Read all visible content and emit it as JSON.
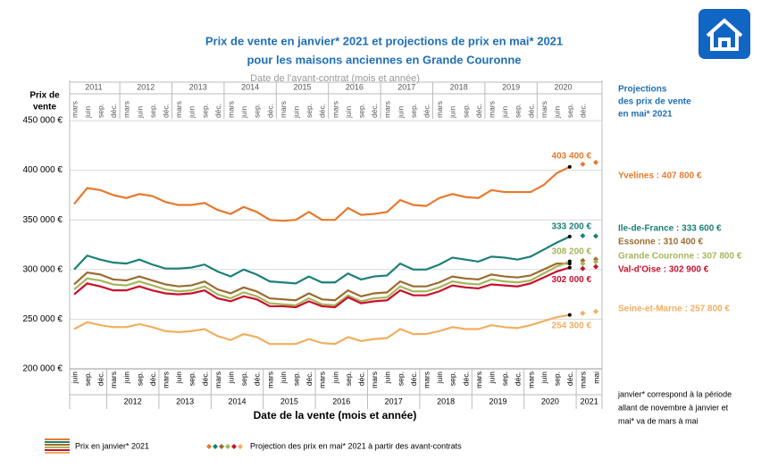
{
  "chart_data": {
    "type": "line",
    "title": [
      "Prix de vente en janvier* 2021 et projections de prix en mai* 2021",
      "pour les maisons anciennes en Grande Couronne"
    ],
    "x_label_top": "Date de l'avant-contrat (mois et année)",
    "x_label": "Date de la vente (mois et année)",
    "y_label": [
      "Prix de",
      "vente"
    ],
    "projection_header": [
      "Projections",
      "des prix de vente",
      "en mai* 2021"
    ],
    "footnote": [
      "janvier* correspond à la période",
      "allant de novembre à janvier et",
      "mai* va de mars à mai"
    ],
    "legend": [
      "Prix en janvier* 2021",
      "Projection des prix en mai* 2021 à partir des avant-contrats"
    ],
    "top_categories": [
      "mars",
      "juin",
      "sep.",
      "déc.",
      "mars",
      "juin",
      "sep.",
      "déc.",
      "mars",
      "juin",
      "sep.",
      "déc.",
      "mars",
      "juin",
      "sep.",
      "déc.",
      "mars",
      "juin",
      "sep.",
      "déc.",
      "mars",
      "juin",
      "sep.",
      "déc.",
      "mars",
      "juin",
      "sep.",
      "déc.",
      "mars",
      "juin",
      "sep.",
      "déc.",
      "mars",
      "juin",
      "sep.",
      "déc.",
      "mars",
      "juin",
      "sep.",
      "déc."
    ],
    "top_years": [
      2011,
      2012,
      2013,
      2014,
      2015,
      2016,
      2017,
      2018,
      2019,
      2020
    ],
    "categories": [
      "juin",
      "sep.",
      "déc.",
      "mars",
      "juin",
      "sep.",
      "déc.",
      "mars",
      "juin",
      "sep.",
      "déc.",
      "mars",
      "juin",
      "sep.",
      "déc.",
      "mars",
      "juin",
      "sep.",
      "déc.",
      "mars",
      "juin",
      "sep.",
      "déc.",
      "mars",
      "juin",
      "sep.",
      "déc.",
      "mars",
      "juin",
      "sep.",
      "déc.",
      "mars",
      "juin",
      "sep.",
      "déc.",
      "mars",
      "juin",
      "sep.",
      "déc.",
      "mars",
      "mai"
    ],
    "years": [
      2012,
      2013,
      2014,
      2015,
      2016,
      2017,
      2018,
      2019,
      2020,
      2021
    ],
    "ylim": [
      200000,
      450000
    ],
    "yticks": [
      {
        "value": 200000,
        "label": "200 000 €"
      },
      {
        "value": 250000,
        "label": "250 000 €"
      },
      {
        "value": 300000,
        "label": "300 000 €"
      },
      {
        "value": 350000,
        "label": "350 000 €"
      },
      {
        "value": 400000,
        "label": "400 000 €"
      },
      {
        "value": 450000,
        "label": "450 000 €"
      }
    ],
    "grid": true,
    "series": [
      {
        "name": "Yvelines : 407 800 €",
        "color": "#e8792b",
        "end_label": "403 400 €",
        "values": [
          366000,
          382000,
          380000,
          375000,
          372000,
          376000,
          374000,
          368000,
          365000,
          365000,
          367000,
          360000,
          356000,
          363000,
          358000,
          350000,
          349000,
          350000,
          358000,
          350000,
          350000,
          362000,
          355000,
          356000,
          358000,
          370000,
          365000,
          364000,
          372000,
          376000,
          373000,
          372000,
          380000,
          378000,
          378000,
          378000,
          385000,
          397000,
          403400,
          null,
          null
        ],
        "projection": [
          null,
          null,
          null,
          null,
          null,
          null,
          null,
          null,
          null,
          null,
          null,
          null,
          null,
          null,
          null,
          null,
          null,
          null,
          null,
          null,
          null,
          null,
          null,
          null,
          null,
          null,
          null,
          null,
          null,
          null,
          null,
          null,
          null,
          null,
          null,
          null,
          null,
          null,
          null,
          406000,
          407800
        ]
      },
      {
        "name": "Ile-de-France : 333 600 €",
        "color": "#1b8077",
        "end_label": "333 200 €",
        "values": [
          300000,
          314000,
          310000,
          307000,
          306000,
          310000,
          305000,
          301000,
          301000,
          302000,
          305000,
          298000,
          293000,
          300000,
          295000,
          288000,
          287000,
          286000,
          293000,
          287000,
          287000,
          296000,
          290000,
          293000,
          294000,
          306000,
          300000,
          300000,
          305000,
          312000,
          310000,
          308000,
          313000,
          312000,
          310000,
          313000,
          320000,
          327000,
          333200,
          null,
          null
        ],
        "projection": [
          null,
          null,
          null,
          null,
          null,
          null,
          null,
          null,
          null,
          null,
          null,
          null,
          null,
          null,
          null,
          null,
          null,
          null,
          null,
          null,
          null,
          null,
          null,
          null,
          null,
          null,
          null,
          null,
          null,
          null,
          null,
          null,
          null,
          null,
          null,
          null,
          null,
          null,
          null,
          334000,
          333600
        ]
      },
      {
        "name": "Essonne : 310 400 €",
        "color": "#9b6b2f",
        "values": [
          285000,
          297000,
          295000,
          290000,
          289000,
          293000,
          289000,
          285000,
          283000,
          284000,
          288000,
          280000,
          276000,
          282000,
          278000,
          271000,
          270000,
          269000,
          276000,
          270000,
          269000,
          279000,
          273000,
          276000,
          277000,
          288000,
          283000,
          283000,
          287000,
          293000,
          291000,
          290000,
          295000,
          293000,
          292000,
          294000,
          300000,
          306000,
          306000,
          null,
          null
        ],
        "projection": [
          null,
          null,
          null,
          null,
          null,
          null,
          null,
          null,
          null,
          null,
          null,
          null,
          null,
          null,
          null,
          null,
          null,
          null,
          null,
          null,
          null,
          null,
          null,
          null,
          null,
          null,
          null,
          null,
          null,
          null,
          null,
          null,
          null,
          null,
          null,
          null,
          null,
          null,
          null,
          309000,
          310400
        ]
      },
      {
        "name": "Grande Couronne : 307 800 €",
        "color": "#a7b55a",
        "end_label": "308 200 €",
        "values": [
          280000,
          291000,
          289000,
          285000,
          284000,
          288000,
          284000,
          280000,
          278000,
          279000,
          283000,
          275000,
          271000,
          277000,
          273000,
          266000,
          265000,
          264000,
          271000,
          265000,
          264000,
          274000,
          268000,
          271000,
          272000,
          283000,
          278000,
          278000,
          282000,
          288000,
          286000,
          285000,
          290000,
          288000,
          287000,
          289000,
          296000,
          303000,
          308200,
          null,
          null
        ],
        "projection": [
          null,
          null,
          null,
          null,
          null,
          null,
          null,
          null,
          null,
          null,
          null,
          null,
          null,
          null,
          null,
          null,
          null,
          null,
          null,
          null,
          null,
          null,
          null,
          null,
          null,
          null,
          null,
          null,
          null,
          null,
          null,
          null,
          null,
          null,
          null,
          null,
          null,
          null,
          null,
          306000,
          307800
        ]
      },
      {
        "name": "Val-d'Oise : 302 900 €",
        "color": "#c8102e",
        "end_label": "302 000 €",
        "values": [
          275000,
          286000,
          283000,
          279000,
          279000,
          283000,
          279000,
          276000,
          275000,
          276000,
          279000,
          271000,
          268000,
          273000,
          270000,
          263000,
          263000,
          262000,
          268000,
          263000,
          262000,
          272000,
          266000,
          268000,
          269000,
          279000,
          274000,
          274000,
          278000,
          284000,
          282000,
          281000,
          285000,
          284000,
          283000,
          286000,
          292000,
          298000,
          302000,
          null,
          null
        ],
        "projection": [
          null,
          null,
          null,
          null,
          null,
          null,
          null,
          null,
          null,
          null,
          null,
          null,
          null,
          null,
          null,
          null,
          null,
          null,
          null,
          null,
          null,
          null,
          null,
          null,
          null,
          null,
          null,
          null,
          null,
          null,
          null,
          null,
          null,
          null,
          null,
          null,
          null,
          null,
          null,
          301000,
          302900
        ]
      },
      {
        "name": "Seine-et-Marne : 257 800 €",
        "color": "#f2ae5f",
        "end_label": "254 300 €",
        "values": [
          240000,
          247000,
          244000,
          242000,
          242000,
          245000,
          242000,
          238000,
          237000,
          238000,
          240000,
          233000,
          229000,
          235000,
          232000,
          225000,
          225000,
          225000,
          230000,
          226000,
          225000,
          232000,
          228000,
          230000,
          231000,
          240000,
          235000,
          235000,
          238000,
          242000,
          240000,
          240000,
          244000,
          242000,
          241000,
          244000,
          248000,
          252000,
          254300,
          null,
          null
        ],
        "projection": [
          null,
          null,
          null,
          null,
          null,
          null,
          null,
          null,
          null,
          null,
          null,
          null,
          null,
          null,
          null,
          null,
          null,
          null,
          null,
          null,
          null,
          null,
          null,
          null,
          null,
          null,
          null,
          null,
          null,
          null,
          null,
          null,
          null,
          null,
          null,
          null,
          null,
          null,
          null,
          256000,
          257800
        ]
      }
    ]
  }
}
